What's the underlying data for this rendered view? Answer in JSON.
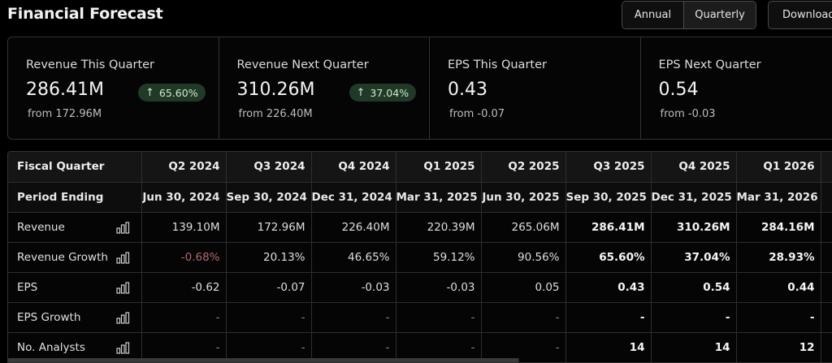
{
  "header": {
    "title": "Financial Forecast",
    "period_options": [
      "Annual",
      "Quarterly"
    ],
    "selected_period": "Quarterly",
    "download_label": "Download"
  },
  "cards": [
    {
      "label": "Revenue This Quarter",
      "value": "286.41M",
      "from": "from 172.96M",
      "badge": "65.60%",
      "badge_arrow": "↑"
    },
    {
      "label": "Revenue Next Quarter",
      "value": "310.26M",
      "from": "from 226.40M",
      "badge": "37.04%",
      "badge_arrow": "↑"
    },
    {
      "label": "EPS This Quarter",
      "value": "0.43",
      "from": "from -0.07"
    },
    {
      "label": "EPS Next Quarter",
      "value": "0.54",
      "from": "from -0.03"
    }
  ],
  "table": {
    "header_label": "Fiscal Quarter",
    "period_label": "Period Ending",
    "quarters": [
      "Q2 2024",
      "Q3 2024",
      "Q4 2024",
      "Q1 2025",
      "Q2 2025",
      "Q3 2025",
      "Q4 2025",
      "Q1 2026"
    ],
    "period_ending": [
      "Jun 30, 2024",
      "Sep 30, 2024",
      "Dec 31, 2024",
      "Mar 31, 2025",
      "Jun 30, 2025",
      "Sep 30, 2025",
      "Dec 31, 2025",
      "Mar 31, 2026"
    ],
    "rows": [
      {
        "label": "Revenue",
        "values": [
          "139.10M",
          "172.96M",
          "226.40M",
          "220.39M",
          "265.06M",
          "286.41M",
          "310.26M",
          "284.16M"
        ]
      },
      {
        "label": "Revenue Growth",
        "values": [
          "-0.68%",
          "20.13%",
          "46.65%",
          "59.12%",
          "90.56%",
          "65.60%",
          "37.04%",
          "28.93%"
        ]
      },
      {
        "label": "EPS",
        "values": [
          "-0.62",
          "-0.07",
          "-0.03",
          "-0.03",
          "0.05",
          "0.43",
          "0.54",
          "0.44"
        ]
      },
      {
        "label": "EPS Growth",
        "values": [
          "-",
          "-",
          "-",
          "-",
          "-",
          "-",
          "-",
          "-"
        ]
      },
      {
        "label": "No. Analysts",
        "values": [
          "-",
          "-",
          "-",
          "-",
          "-",
          "14",
          "14",
          "12"
        ]
      }
    ],
    "forecast_start_index": 5
  },
  "colors": {
    "background": "#000000",
    "badge_bg": "#1f3a26",
    "negative": "#b36b6b"
  }
}
